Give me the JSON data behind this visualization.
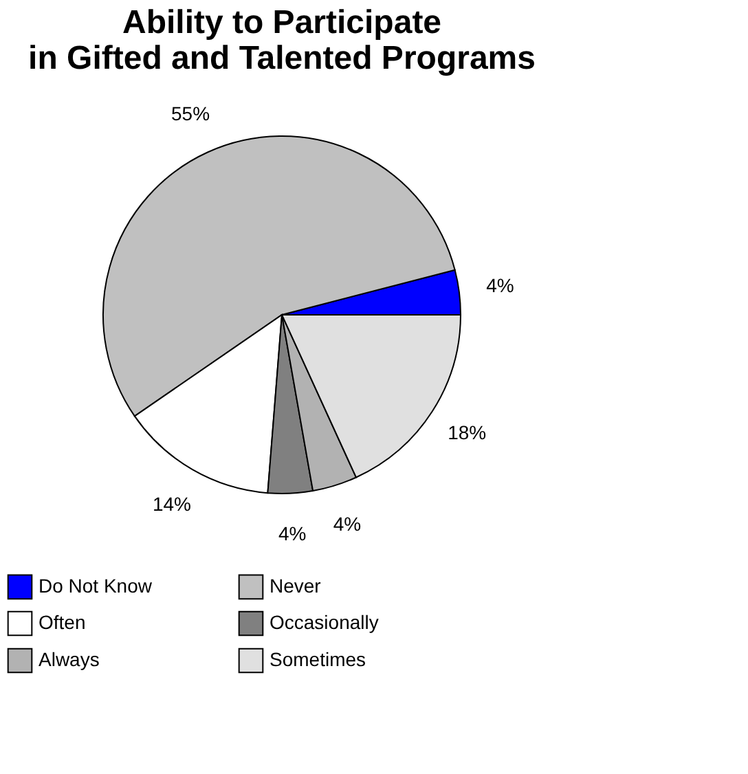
{
  "chart_data": {
    "type": "pie",
    "title": "Ability to Participate\nin Gifted and Talented Programs",
    "categories": [
      "Do Not Know",
      "Never",
      "Often",
      "Occasionally",
      "Always",
      "Sometimes"
    ],
    "values": [
      4,
      55,
      14,
      4,
      4,
      18
    ],
    "colors": [
      "#0000ff",
      "#c0c0c0",
      "#ffffff",
      "#808080",
      "#b2b2b2",
      "#e0e0e0"
    ],
    "value_labels": [
      "4%",
      "55%",
      "14%",
      "4%",
      "4%",
      "18%"
    ],
    "legend": "bottom"
  }
}
